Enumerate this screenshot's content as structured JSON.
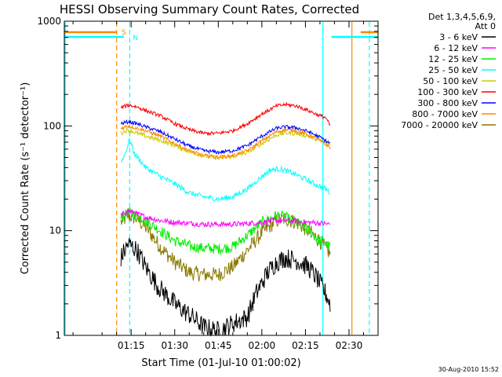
{
  "chart_data": {
    "type": "line",
    "title": "HESSI Observing Summary Count Rates, Corrected",
    "xlabel": "Start Time (01-Jul-10 01:00:02)",
    "ylabel": "Corrected Count Rate (s⁻¹ detector⁻¹)",
    "x_unit": "minutes after 01:00:02",
    "xlim": [
      -8,
      100
    ],
    "ylim": [
      1,
      1000
    ],
    "y_scale": "log",
    "x_ticks": [
      {
        "x": 15,
        "label": "01:15"
      },
      {
        "x": 30,
        "label": "01:30"
      },
      {
        "x": 45,
        "label": "01:45"
      },
      {
        "x": 60,
        "label": "02:00"
      },
      {
        "x": 75,
        "label": "02:15"
      },
      {
        "x": 90,
        "label": "02:30"
      }
    ],
    "y_ticks": [
      {
        "y": 1,
        "label": "1"
      },
      {
        "y": 10,
        "label": "10"
      },
      {
        "y": 100,
        "label": "100"
      },
      {
        "y": 1000,
        "label": "1000"
      }
    ],
    "legend_header": [
      "Det 1,3,4,5,6,9,",
      "Att 0"
    ],
    "legend_position": "top-right",
    "data_range": [
      11.5,
      83.5
    ],
    "series": [
      {
        "name": "3 - 6 keV",
        "color": "#000000",
        "x": [
          11.5,
          14,
          17,
          20,
          24,
          30,
          36,
          40,
          45,
          50,
          55,
          58,
          62,
          65,
          68,
          72,
          76,
          79,
          82,
          83.5
        ],
        "y": [
          5.5,
          7.5,
          6.5,
          4.5,
          3,
          2,
          1.5,
          1.2,
          1.1,
          1.3,
          1.5,
          2.5,
          4,
          5,
          5.5,
          5.2,
          4.5,
          3.5,
          2.5,
          2
        ]
      },
      {
        "name": "6 - 12 keV",
        "color": "#ff00ff",
        "x": [
          11.5,
          14,
          17,
          20,
          25,
          30,
          36,
          40,
          45,
          50,
          55,
          60,
          65,
          68,
          72,
          76,
          80,
          83.5
        ],
        "y": [
          14,
          15.5,
          14.5,
          13.5,
          12.5,
          12,
          11.7,
          11.5,
          11.5,
          11.5,
          11.7,
          12,
          12.5,
          12.5,
          12.3,
          12,
          11.8,
          11.5
        ]
      },
      {
        "name": "12 - 25 keV",
        "color": "#00ee00",
        "x": [
          11.5,
          14,
          17,
          21,
          25,
          30,
          36,
          40,
          45,
          50,
          55,
          60,
          65,
          68,
          72,
          76,
          80,
          83.5
        ],
        "y": [
          13,
          15,
          14,
          12,
          10,
          8,
          7,
          6.8,
          6.7,
          7,
          9,
          12,
          14,
          13.5,
          12,
          10,
          8,
          7
        ]
      },
      {
        "name": "25 - 50 keV",
        "color": "#00ffff",
        "x": [
          11.5,
          13,
          14.5,
          16,
          20,
          25,
          30,
          35,
          40,
          45,
          50,
          55,
          60,
          63,
          66,
          70,
          74,
          78,
          82,
          83.5
        ],
        "y": [
          45,
          55,
          75,
          55,
          40,
          33,
          28,
          23,
          21,
          20,
          21,
          25,
          33,
          38,
          39,
          36,
          32,
          28,
          25,
          23
        ]
      },
      {
        "name": "50 - 100 keV",
        "color": "#cccc00",
        "x": [
          11.5,
          14,
          17,
          20,
          25,
          30,
          35,
          40,
          45,
          50,
          55,
          60,
          65,
          68,
          72,
          76,
          80,
          83.5
        ],
        "y": [
          85,
          92,
          85,
          80,
          73,
          65,
          57,
          52,
          50,
          51,
          56,
          68,
          82,
          86,
          85,
          80,
          73,
          65
        ]
      },
      {
        "name": "100 - 300 keV",
        "color": "#ff0000",
        "x": [
          11.5,
          14,
          17,
          20,
          25,
          30,
          35,
          40,
          45,
          50,
          55,
          60,
          65,
          68,
          72,
          76,
          80,
          82,
          83.5
        ],
        "y": [
          150,
          158,
          152,
          140,
          125,
          105,
          92,
          85,
          85,
          90,
          105,
          130,
          155,
          160,
          155,
          140,
          125,
          120,
          100
        ]
      },
      {
        "name": "300 - 800 keV",
        "color": "#0000ff",
        "x": [
          11.5,
          14,
          17,
          20,
          25,
          30,
          35,
          40,
          45,
          50,
          55,
          60,
          65,
          68,
          72,
          76,
          80,
          83.5
        ],
        "y": [
          105,
          110,
          105,
          98,
          88,
          75,
          64,
          58,
          56,
          58,
          65,
          80,
          95,
          98,
          96,
          88,
          78,
          68
        ]
      },
      {
        "name": "800 - 7000 keV",
        "color": "#ff8800",
        "x": [
          11.5,
          14,
          17,
          20,
          25,
          30,
          35,
          40,
          45,
          50,
          55,
          60,
          65,
          68,
          72,
          76,
          80,
          83.5
        ],
        "y": [
          95,
          100,
          95,
          90,
          80,
          68,
          58,
          52,
          50,
          52,
          58,
          72,
          88,
          92,
          90,
          82,
          72,
          62
        ]
      },
      {
        "name": "7000 - 20000 keV",
        "color": "#887700",
        "x": [
          11.5,
          14,
          17,
          21,
          25,
          30,
          35,
          40,
          45,
          50,
          55,
          60,
          65,
          68,
          72,
          76,
          80,
          83.5
        ],
        "y": [
          12,
          14,
          13,
          10,
          7,
          5,
          4,
          3.8,
          3.8,
          4.5,
          6.5,
          9.5,
          12.5,
          13,
          12,
          10,
          8,
          6
        ]
      }
    ],
    "annotations": [
      {
        "label": "S",
        "color": "#ff8800",
        "x": 12.5
      },
      {
        "label": "N",
        "color": "#00ffff",
        "x": 16.5
      }
    ],
    "saa_intervals": [
      {
        "color": "#ff8800",
        "x": [
          -8,
          10
        ]
      },
      {
        "color": "#00ffff",
        "x": [
          -8,
          12.5
        ]
      },
      {
        "color": "#00ffff",
        "x": [
          84,
          100
        ]
      },
      {
        "color": "#ff8800",
        "x": [
          94,
          100
        ]
      }
    ],
    "vertical_markers": [
      {
        "color": "#00ffff",
        "style": "solid",
        "x": -8
      },
      {
        "color": "#ff8800",
        "style": "dashed",
        "x": 10
      },
      {
        "color": "#00ffff",
        "style": "dashed",
        "x": 14.5
      },
      {
        "color": "#00ffff",
        "style": "solid",
        "x": 81
      },
      {
        "color": "#ff8800",
        "style": "solid",
        "x": 91
      },
      {
        "color": "#00ffff",
        "style": "dashed",
        "x": 97
      }
    ],
    "timestamp": "30-Aug-2010 15:52"
  }
}
